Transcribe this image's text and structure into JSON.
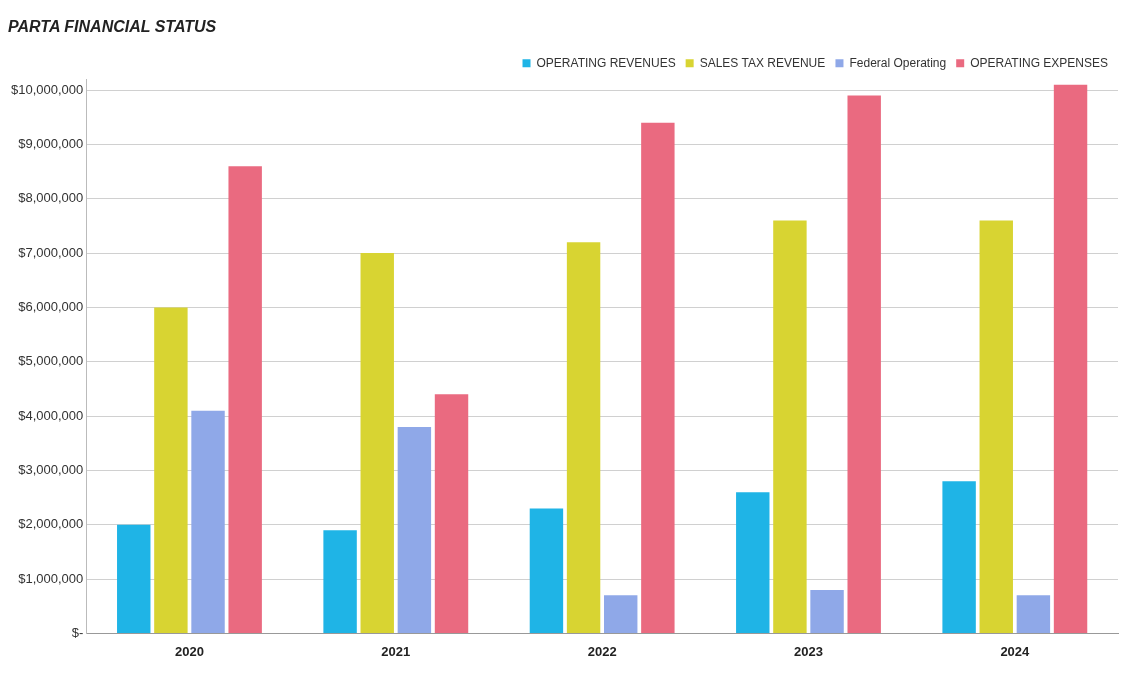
{
  "chart_data": {
    "type": "bar",
    "title": "PARTA FINANCIAL STATUS",
    "categories": [
      "2020",
      "2021",
      "2022",
      "2023",
      "2024"
    ],
    "series": [
      {
        "name": "OPERATING REVENUES",
        "color": "#1fb4e6",
        "values": [
          2000000,
          1900000,
          2300000,
          2600000,
          2800000
        ]
      },
      {
        "name": "SALES TAX REVENUE",
        "color": "#d8d432",
        "values": [
          6000000,
          7000000,
          7200000,
          7600000,
          7600000
        ]
      },
      {
        "name": "Federal Operating",
        "color": "#8fa8e8",
        "values": [
          4100000,
          3800000,
          700000,
          800000,
          700000
        ]
      },
      {
        "name": "OPERATING EXPENSES",
        "color": "#ea6a80",
        "values": [
          8600000,
          4400000,
          9400000,
          9900000,
          10100000
        ]
      }
    ],
    "ylim": [
      0,
      10200000
    ],
    "yticks": [
      {
        "value": 0,
        "label": "$-"
      },
      {
        "value": 1000000,
        "label": "$1,000,000"
      },
      {
        "value": 2000000,
        "label": "$2,000,000"
      },
      {
        "value": 3000000,
        "label": "$3,000,000"
      },
      {
        "value": 4000000,
        "label": "$4,000,000"
      },
      {
        "value": 5000000,
        "label": "$5,000,000"
      },
      {
        "value": 6000000,
        "label": "$6,000,000"
      },
      {
        "value": 7000000,
        "label": "$7,000,000"
      },
      {
        "value": 8000000,
        "label": "$8,000,000"
      },
      {
        "value": 9000000,
        "label": "$9,000,000"
      },
      {
        "value": 10000000,
        "label": "$10,000,000"
      }
    ],
    "grid": "y",
    "legend": "top right"
  }
}
